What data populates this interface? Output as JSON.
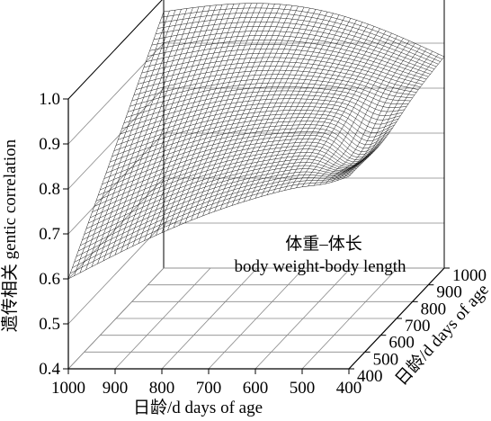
{
  "chart_data": {
    "type": "surface",
    "annotation": {
      "cn": "体重–体长",
      "en": "body weight-body length"
    },
    "zlabel": "遗传相关 gentic correlation",
    "xlabel": "日龄/d days of age",
    "ylabel": "日龄/d days of age",
    "zlim": [
      0.4,
      1.0
    ],
    "xlim": [
      1000,
      400
    ],
    "ylim": [
      400,
      1000
    ],
    "z_ticks": [
      "0.4",
      "0.5",
      "0.6",
      "0.7",
      "0.8",
      "0.9",
      "1.0"
    ],
    "x_ticks": [
      "1000",
      "900",
      "800",
      "700",
      "600",
      "500",
      "400"
    ],
    "y_ticks": [
      "400",
      "500",
      "600",
      "700",
      "800",
      "900",
      "1000"
    ],
    "grid": true,
    "surface": {
      "description_values": "correlation by (age x, age y)",
      "x": [
        1000,
        400
      ],
      "y": [
        400,
        1000
      ],
      "corner_values": {
        "x1000_y400": 0.6,
        "x400_y400": 0.83,
        "x1000_y1000": 0.97,
        "x400_y1000": 0.87
      }
    }
  }
}
